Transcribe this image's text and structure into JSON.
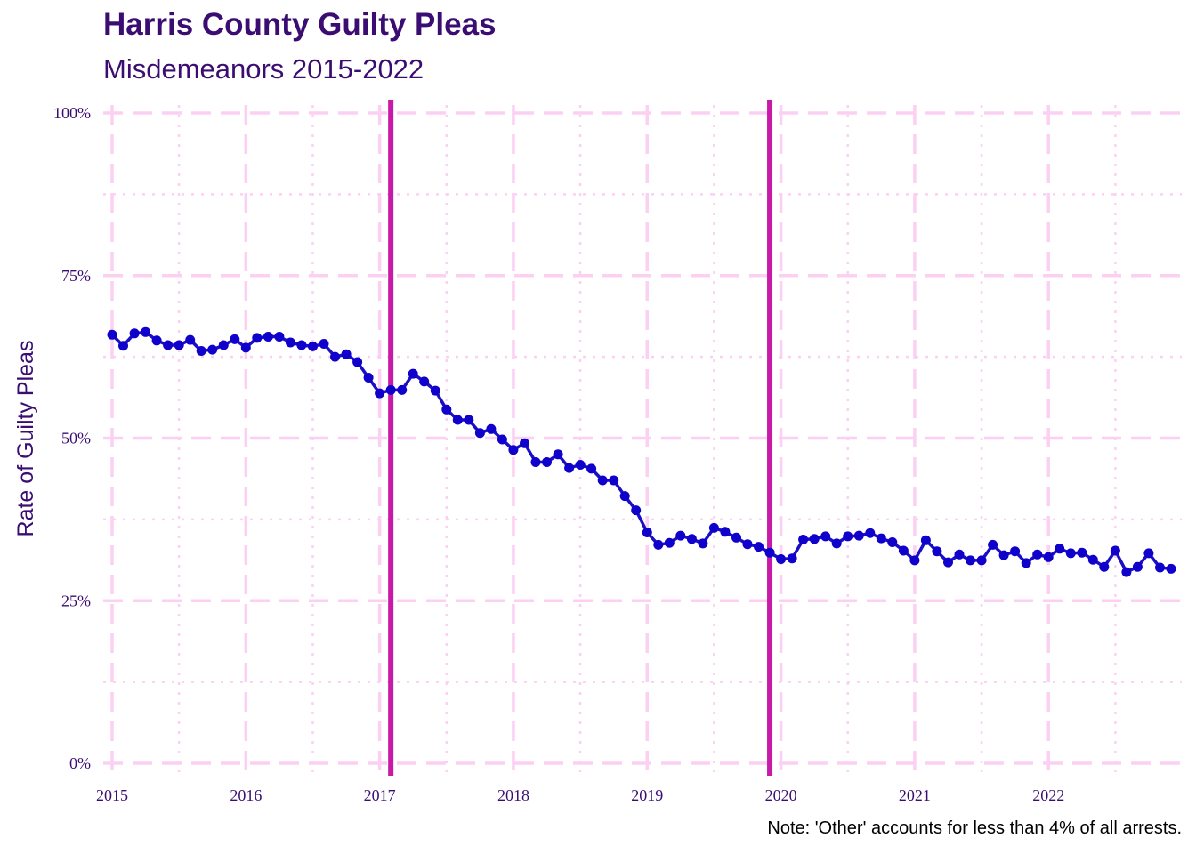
{
  "chart_data": {
    "type": "line",
    "title": "Harris County Guilty Pleas",
    "subtitle": "Misdemeanors 2015-2022",
    "ylabel": "Rate of Guilty Pleas",
    "xlabel": "",
    "caption": "Note: 'Other' accounts for less than 4% of all arrests.",
    "x_ticks": [
      "2015",
      "2016",
      "2017",
      "2018",
      "2019",
      "2020",
      "2021",
      "2022"
    ],
    "y_ticks": [
      "0%",
      "25%",
      "50%",
      "75%",
      "100%"
    ],
    "ylim": [
      0,
      1
    ],
    "xlim": [
      "2015-01",
      "2022-12"
    ],
    "grid": true,
    "colors": {
      "title": "#3b0d72",
      "line": "#1b0fc4",
      "points": "#1000cc",
      "vlines": "#c81aa8",
      "grid": "#fcd0f2"
    },
    "vertical_lines": [
      "2017-02",
      "2019-12"
    ],
    "series": [
      {
        "start": "2015-01",
        "values": [
          0.659,
          0.642,
          0.661,
          0.663,
          0.65,
          0.643,
          0.643,
          0.651,
          0.634,
          0.636,
          0.643,
          0.652,
          0.639,
          0.654,
          0.656,
          0.656,
          0.647,
          0.643,
          0.641,
          0.645,
          0.625,
          0.629,
          0.617,
          0.593,
          0.569,
          0.574,
          0.574,
          0.599,
          0.587,
          0.573,
          0.544,
          0.528,
          0.528,
          0.508,
          0.514,
          0.498,
          0.482,
          0.492,
          0.463,
          0.463,
          0.475,
          0.454,
          0.459,
          0.453,
          0.435,
          0.435,
          0.411,
          0.389,
          0.355,
          0.336,
          0.339,
          0.35,
          0.345,
          0.338,
          0.362,
          0.356,
          0.347,
          0.337,
          0.333,
          0.324,
          0.314,
          0.315,
          0.344,
          0.345,
          0.349,
          0.338,
          0.349,
          0.35,
          0.354,
          0.346,
          0.34,
          0.327,
          0.312,
          0.343,
          0.326,
          0.309,
          0.321,
          0.312,
          0.312,
          0.336,
          0.32,
          0.326,
          0.308,
          0.321,
          0.317,
          0.33,
          0.323,
          0.324,
          0.313,
          0.302,
          0.327,
          0.294,
          0.302,
          0.323,
          0.301,
          0.299
        ]
      }
    ]
  }
}
